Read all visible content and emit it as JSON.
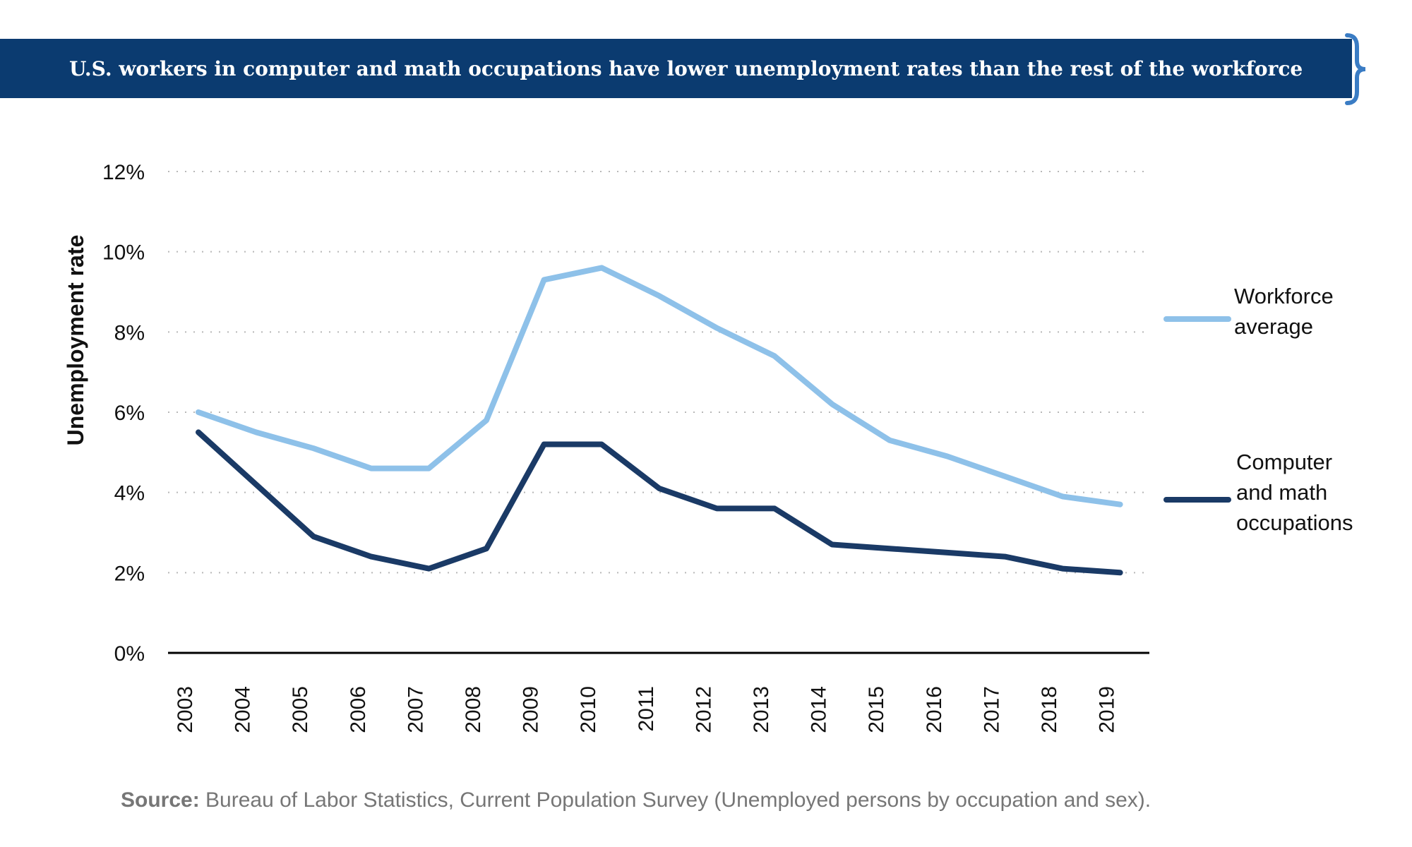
{
  "banner": {
    "title": "U.S. workers in computer and math occupations have lower unemployment rates than the rest of the workforce"
  },
  "source": {
    "label": "Source:",
    "text": "Bureau of Labor Statistics, Current Population Survey (Unemployed persons by occupation and sex)."
  },
  "colors": {
    "banner": "#0b3b70",
    "workforce": "#8ec1e9",
    "computer_math": "#1a3a66",
    "brace": "#3a7cc4"
  },
  "chart_data": {
    "type": "line",
    "title": "U.S. workers in computer and math occupations have lower unemployment rates than the rest of the workforce",
    "xlabel": "",
    "ylabel": "Unemployment rate",
    "ylim": [
      0,
      12
    ],
    "y_ticks": [
      "0%",
      "2%",
      "4%",
      "6%",
      "8%",
      "10%",
      "12%"
    ],
    "y_tick_values": [
      0,
      2,
      4,
      6,
      8,
      10,
      12
    ],
    "grid": "horizontal dotted",
    "legend_position": "right",
    "categories": [
      "2003",
      "2004",
      "2005",
      "2006",
      "2007",
      "2008",
      "2009",
      "2010",
      "2011",
      "2012",
      "2013",
      "2014",
      "2015",
      "2016",
      "2017",
      "2018",
      "2019"
    ],
    "series": [
      {
        "name": "Workforce average",
        "legend_lines": [
          "Workforce",
          "average"
        ],
        "color": "#8ec1e9",
        "values": [
          6.0,
          5.5,
          5.1,
          4.6,
          4.6,
          5.8,
          9.3,
          9.6,
          8.9,
          8.1,
          7.4,
          6.2,
          5.3,
          4.9,
          4.4,
          3.9,
          3.7
        ]
      },
      {
        "name": "Computer and math occupations",
        "legend_lines": [
          "Computer",
          "and math",
          "occupations"
        ],
        "color": "#1a3a66",
        "values": [
          5.5,
          4.2,
          2.9,
          2.4,
          2.1,
          2.6,
          5.2,
          5.2,
          4.1,
          3.6,
          3.6,
          2.7,
          2.6,
          2.5,
          2.4,
          2.1,
          2.0
        ]
      }
    ]
  }
}
